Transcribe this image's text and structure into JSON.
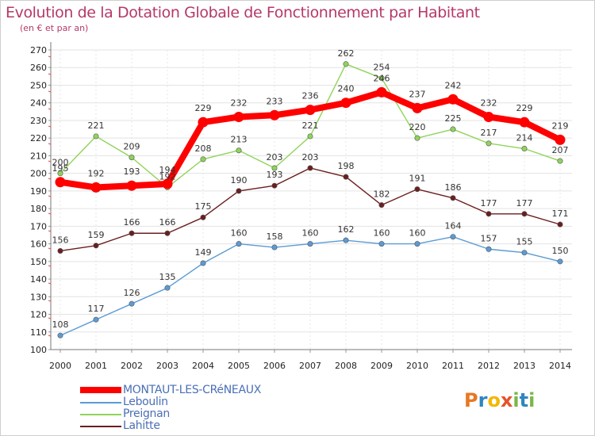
{
  "title": "Evolution de la Dotation Globale de Fonctionnement par Habitant",
  "subtitle": "(en € et par an)",
  "logo": {
    "text": "Proxiti",
    "colors": [
      "#e87722",
      "#2e86c1",
      "#f2b705",
      "#e5532b",
      "#7ab648",
      "#2e86c1",
      "#7ab648"
    ]
  },
  "chart_data": {
    "type": "line",
    "x": [
      "2000",
      "2001",
      "2002",
      "2003",
      "2004",
      "2005",
      "2006",
      "2007",
      "2008",
      "2009",
      "2010",
      "2011",
      "2012",
      "2013",
      "2014"
    ],
    "ylim": [
      100,
      270
    ],
    "yticks": [
      100,
      110,
      120,
      130,
      140,
      150,
      160,
      170,
      180,
      190,
      200,
      210,
      220,
      230,
      240,
      250,
      260,
      270
    ],
    "grid": true,
    "legend_position": "bottom-left",
    "series": [
      {
        "name": "Lahitte",
        "color": "#6b1e1e",
        "values": [
          156,
          159,
          166,
          166,
          175,
          190,
          193,
          203,
          198,
          182,
          191,
          186,
          177,
          177,
          171
        ]
      },
      {
        "name": "Leboulin",
        "color": "#5b9bd5",
        "values": [
          108,
          117,
          126,
          135,
          149,
          160,
          158,
          160,
          162,
          160,
          160,
          164,
          157,
          155,
          150
        ]
      },
      {
        "name": "Preignan",
        "color": "#8fd45a",
        "values": [
          200,
          221,
          209,
          192,
          208,
          213,
          203,
          221,
          262,
          254,
          220,
          225,
          217,
          214,
          207
        ]
      },
      {
        "name": "MONTAUT-LES-CRéNEAUX",
        "color": "#ff0000",
        "values": [
          195,
          192,
          193,
          194,
          229,
          232,
          233,
          236,
          240,
          246,
          237,
          242,
          232,
          229,
          219
        ]
      }
    ],
    "labels": {
      "MONTAUT-LES-CRéNEAUX": [
        "195",
        "192",
        "193",
        "194",
        "229",
        "232",
        "233",
        "236",
        "240",
        "246",
        "237",
        "242",
        "232",
        "229",
        "219"
      ]
    }
  },
  "legend": [
    "MONTAUT-LES-CRéNEAUX",
    "Leboulin",
    "Preignan",
    "Lahitte"
  ]
}
